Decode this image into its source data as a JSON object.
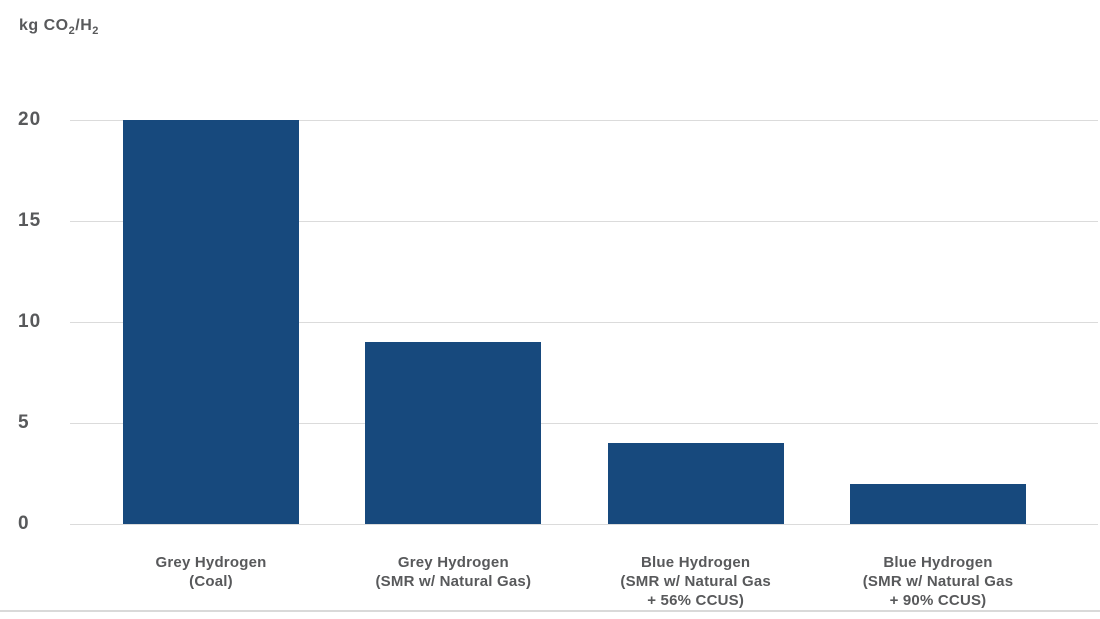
{
  "chart_data": {
    "type": "bar",
    "title": "",
    "ylabel": "kg CO2/H2",
    "ylabel_parts": [
      {
        "text": "kg CO"
      },
      {
        "text": "2",
        "sub": true
      },
      {
        "text": "/H"
      },
      {
        "text": "2",
        "sub": true
      }
    ],
    "categories": [
      [
        "Grey Hydrogen",
        "(Coal)"
      ],
      [
        "Grey Hydrogen",
        "(SMR w/ Natural Gas)"
      ],
      [
        "Blue Hydrogen",
        "(SMR w/ Natural Gas",
        "+ 56% CCUS)"
      ],
      [
        "Blue Hydrogen",
        "(SMR w/ Natural Gas",
        "+ 90% CCUS)"
      ]
    ],
    "values": [
      20,
      9,
      4,
      2
    ],
    "ylim": [
      0,
      20
    ],
    "yticks": [
      0,
      5,
      10,
      15,
      20
    ],
    "grid": true,
    "legend": "none",
    "colors": {
      "bar": "#17497D",
      "text": "#58595B",
      "gridline": "#DBDBDB",
      "bottom_rule": "#D9D9D9"
    }
  }
}
